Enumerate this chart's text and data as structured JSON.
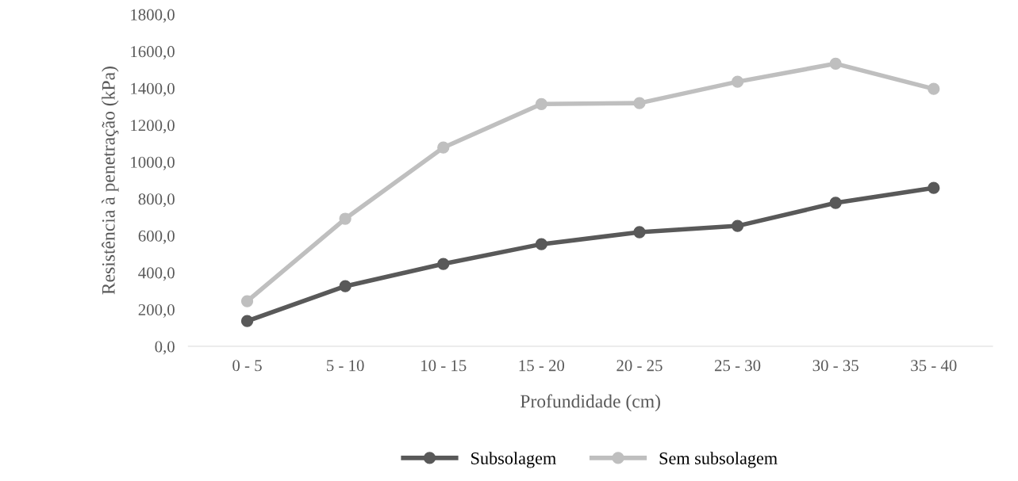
{
  "chart_data": {
    "type": "line",
    "xlabel": "Profundidade (cm)",
    "ylabel": "Resistência à penetração (kPa)",
    "categories": [
      "0 - 5",
      "5 - 10",
      "10 - 15",
      "15 - 20",
      "20 - 25",
      "25 - 30",
      "30 - 35",
      "35 - 40"
    ],
    "series": [
      {
        "name": "Subsolagem",
        "color": "#595959",
        "values": [
          137,
          326,
          447,
          554,
          619,
          653,
          778,
          859
        ]
      },
      {
        "name": "Sem subsolagem",
        "color": "#bfbfbf",
        "values": [
          245,
          692,
          1078,
          1314,
          1319,
          1435,
          1533,
          1396
        ]
      }
    ],
    "ylim": [
      0,
      1800
    ],
    "yticks": [
      {
        "value": 0,
        "label": "0,0"
      },
      {
        "value": 200,
        "label": "200,0"
      },
      {
        "value": 400,
        "label": "400,0"
      },
      {
        "value": 600,
        "label": "600,0"
      },
      {
        "value": 800,
        "label": "800,0"
      },
      {
        "value": 1000,
        "label": "1000,0"
      },
      {
        "value": 1200,
        "label": "1200,0"
      },
      {
        "value": 1400,
        "label": "1400,0"
      },
      {
        "value": 1600,
        "label": "1600,0"
      },
      {
        "value": 1800,
        "label": "1800,0"
      }
    ],
    "grid": false,
    "legend": "bottom",
    "marker": "circle",
    "line_style": "solid"
  }
}
